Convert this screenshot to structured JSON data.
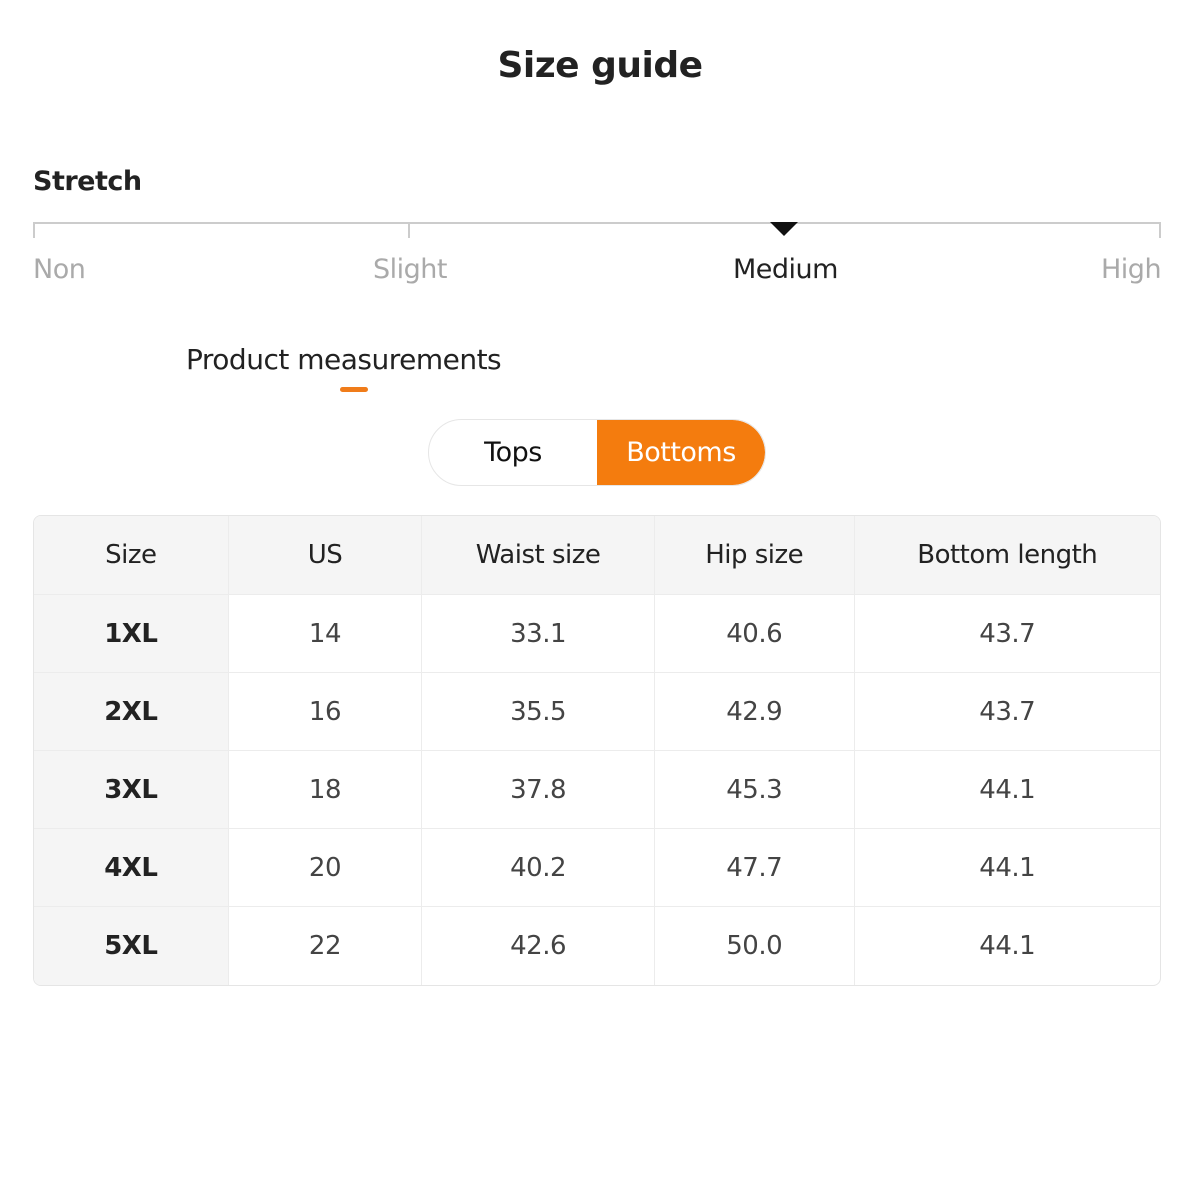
{
  "title": "Size guide",
  "stretch": {
    "label": "Stretch",
    "levels": [
      "Non",
      "Slight",
      "Medium",
      "High"
    ],
    "selected": "Medium"
  },
  "measurements": {
    "tab_label": "Product measurements"
  },
  "toggle": {
    "options": [
      "Tops",
      "Bottoms"
    ],
    "selected": "Bottoms"
  },
  "colors": {
    "accent": "#f47c0e"
  },
  "table": {
    "headers": [
      "Size",
      "US",
      "Waist size",
      "Hip size",
      "Bottom length"
    ],
    "rows": [
      [
        "1XL",
        "14",
        "33.1",
        "40.6",
        "43.7"
      ],
      [
        "2XL",
        "16",
        "35.5",
        "42.9",
        "43.7"
      ],
      [
        "3XL",
        "18",
        "37.8",
        "45.3",
        "44.1"
      ],
      [
        "4XL",
        "20",
        "40.2",
        "47.7",
        "44.1"
      ],
      [
        "5XL",
        "22",
        "42.6",
        "50.0",
        "44.1"
      ]
    ]
  }
}
